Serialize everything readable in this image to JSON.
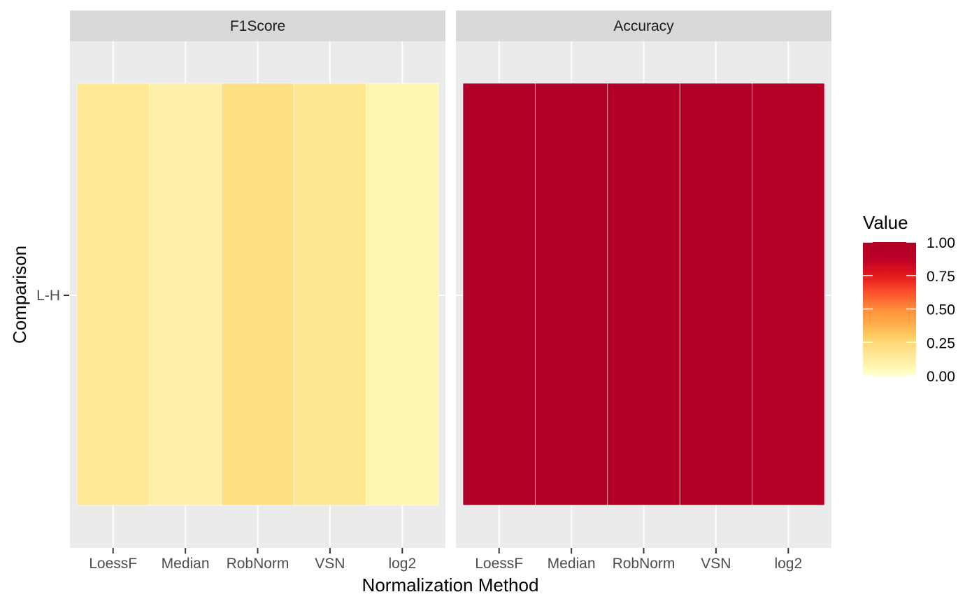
{
  "chart_data": {
    "type": "heatmap",
    "xlabel": "Normalization Method",
    "ylabel": "Comparison",
    "categories": [
      "LoessF",
      "Median",
      "RobNorm",
      "VSN",
      "log2"
    ],
    "rows": [
      "L-H"
    ],
    "panels": [
      {
        "name": "F1Score",
        "values": [
          0.16,
          0.1,
          0.21,
          0.17,
          0.07
        ]
      },
      {
        "name": "Accuracy",
        "values": [
          0.99,
          0.99,
          0.99,
          0.99,
          0.95
        ]
      }
    ],
    "legend": {
      "title": "Value",
      "placement": "right",
      "range": [
        0,
        1
      ],
      "ticks": [
        1.0,
        0.75,
        0.5,
        0.25,
        0.0
      ],
      "tick_labels": [
        "1.00",
        "0.75",
        "0.50",
        "0.25",
        "0.00"
      ],
      "palette": [
        "#ffffcc",
        "#ffeda0",
        "#fed976",
        "#feb24c",
        "#fd8d3c",
        "#fc4e2a",
        "#e31a1c",
        "#bd0026",
        "#b00026"
      ]
    },
    "colors": {
      "panel_bg": "#ebebeb",
      "strip_bg": "#d9d9d9",
      "grid": "#ffffff"
    },
    "grid": true
  }
}
